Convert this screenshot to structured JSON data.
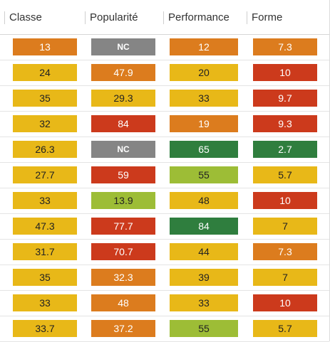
{
  "table": {
    "columns": [
      "Classe",
      "Popularité",
      "Performance",
      "Forme"
    ],
    "palette": {
      "yellow": "#e8b818",
      "orange": "#dc7c1e",
      "red": "#cc3a1c",
      "gray": "#858585",
      "dgreen": "#2f7e3e",
      "lgreen": "#9dbd36"
    },
    "rows": [
      [
        {
          "value": "13",
          "tone": "orange"
        },
        {
          "value": "NC",
          "tone": "gray"
        },
        {
          "value": "12",
          "tone": "orange"
        },
        {
          "value": "7.3",
          "tone": "orange"
        }
      ],
      [
        {
          "value": "24",
          "tone": "yellow"
        },
        {
          "value": "47.9",
          "tone": "orange"
        },
        {
          "value": "20",
          "tone": "yellow"
        },
        {
          "value": "10",
          "tone": "red"
        }
      ],
      [
        {
          "value": "35",
          "tone": "yellow"
        },
        {
          "value": "29.3",
          "tone": "yellow"
        },
        {
          "value": "33",
          "tone": "yellow"
        },
        {
          "value": "9.7",
          "tone": "red"
        }
      ],
      [
        {
          "value": "32",
          "tone": "yellow"
        },
        {
          "value": "84",
          "tone": "red"
        },
        {
          "value": "19",
          "tone": "orange"
        },
        {
          "value": "9.3",
          "tone": "red"
        }
      ],
      [
        {
          "value": "26.3",
          "tone": "yellow"
        },
        {
          "value": "NC",
          "tone": "gray"
        },
        {
          "value": "65",
          "tone": "dgreen"
        },
        {
          "value": "2.7",
          "tone": "dgreen"
        }
      ],
      [
        {
          "value": "27.7",
          "tone": "yellow"
        },
        {
          "value": "59",
          "tone": "red"
        },
        {
          "value": "55",
          "tone": "lgreen"
        },
        {
          "value": "5.7",
          "tone": "yellow"
        }
      ],
      [
        {
          "value": "33",
          "tone": "yellow"
        },
        {
          "value": "13.9",
          "tone": "lgreen"
        },
        {
          "value": "48",
          "tone": "yellow"
        },
        {
          "value": "10",
          "tone": "red"
        }
      ],
      [
        {
          "value": "47.3",
          "tone": "yellow"
        },
        {
          "value": "77.7",
          "tone": "red"
        },
        {
          "value": "84",
          "tone": "dgreen"
        },
        {
          "value": "7",
          "tone": "yellow"
        }
      ],
      [
        {
          "value": "31.7",
          "tone": "yellow"
        },
        {
          "value": "70.7",
          "tone": "red"
        },
        {
          "value": "44",
          "tone": "yellow"
        },
        {
          "value": "7.3",
          "tone": "orange"
        }
      ],
      [
        {
          "value": "35",
          "tone": "yellow"
        },
        {
          "value": "32.3",
          "tone": "orange"
        },
        {
          "value": "39",
          "tone": "yellow"
        },
        {
          "value": "7",
          "tone": "yellow"
        }
      ],
      [
        {
          "value": "33",
          "tone": "yellow"
        },
        {
          "value": "48",
          "tone": "orange"
        },
        {
          "value": "33",
          "tone": "yellow"
        },
        {
          "value": "10",
          "tone": "red"
        }
      ],
      [
        {
          "value": "33.7",
          "tone": "yellow"
        },
        {
          "value": "37.2",
          "tone": "orange"
        },
        {
          "value": "55",
          "tone": "lgreen"
        },
        {
          "value": "5.7",
          "tone": "yellow"
        }
      ]
    ]
  }
}
